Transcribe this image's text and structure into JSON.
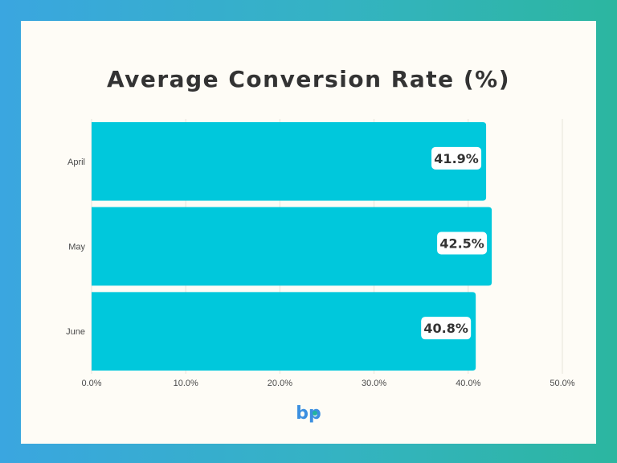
{
  "chart_data": {
    "type": "bar",
    "orientation": "horizontal",
    "title": "Average Conversion Rate (%)",
    "categories": [
      "April",
      "May",
      "June"
    ],
    "values": [
      41.9,
      42.5,
      40.8
    ],
    "value_labels": [
      "41.9%",
      "42.5%",
      "40.8%"
    ],
    "xlim": [
      0,
      50
    ],
    "x_ticks": [
      "0.0%",
      "10.0%",
      "20.0%",
      "30.0%",
      "40.0%",
      "50.0%"
    ],
    "grid": true,
    "legend": "none",
    "bar_color": "#00c8dc"
  },
  "colors": {
    "card_background": "#fefcf6",
    "logo_blue": "#3b8fe0",
    "logo_teal": "#22b3a0"
  },
  "logo": {
    "text": "bp"
  }
}
